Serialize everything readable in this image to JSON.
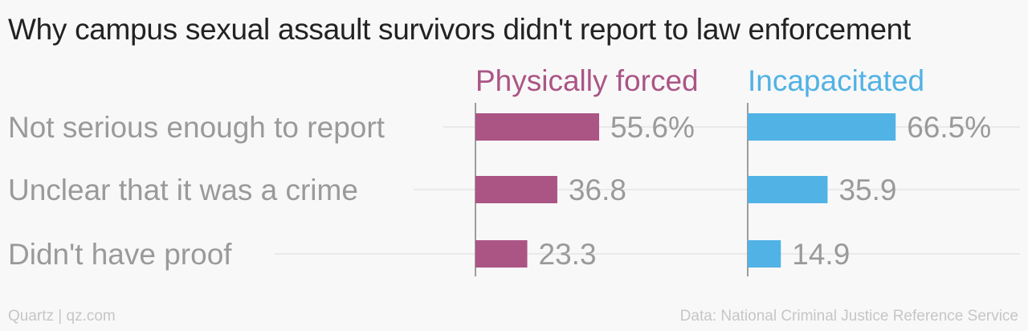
{
  "title": "Why campus sexual assault survivors didn't report to law enforcement",
  "footer": {
    "credit": "Quartz | qz.com",
    "source": "Data: National Criminal Justice Reference Service"
  },
  "colors": {
    "physically_forced": "#ab5585",
    "incapacitated": "#51b2e5",
    "label_text": "#9a9a9a",
    "gridline": "#e6e6e6",
    "axis": "#7f7f7f"
  },
  "chart_data": {
    "type": "bar",
    "orientation": "horizontal",
    "title": "Why campus sexual assault survivors didn't report to law enforcement",
    "categories": [
      "Not serious enough to report",
      "Unclear that it was a crime",
      "Didn't have proof"
    ],
    "series": [
      {
        "name": "Physically forced",
        "values": [
          55.6,
          36.8,
          23.3
        ],
        "labels": [
          "55.6%",
          "36.8",
          "23.3"
        ]
      },
      {
        "name": "Incapacitated",
        "values": [
          66.5,
          35.9,
          14.9
        ],
        "labels": [
          "66.5%",
          "35.9",
          "14.9"
        ]
      }
    ],
    "xlim": [
      0,
      100
    ],
    "legend": "series titles above each panel",
    "grid": true
  }
}
